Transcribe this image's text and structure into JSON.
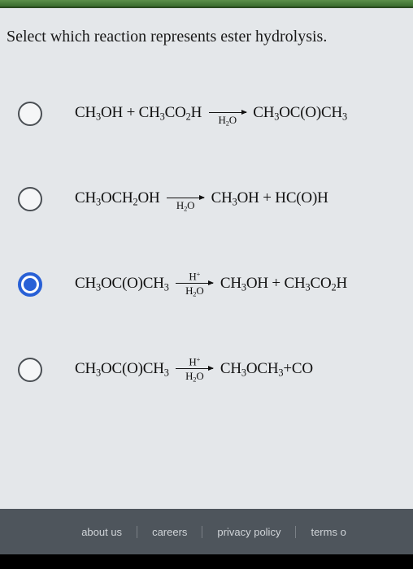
{
  "question": "Select which reaction represents ester hydrolysis.",
  "options": [
    {
      "selected": false,
      "left_html": "CH<sub>3</sub>OH + CH<sub>3</sub>CO<sub>2</sub>H",
      "top": "",
      "bottom_html": "H<sub>2</sub>O",
      "right_html": "CH<sub>3</sub>OC(O)CH<sub>3</sub>"
    },
    {
      "selected": false,
      "left_html": "CH<sub>3</sub>OCH<sub>2</sub>OH",
      "top": "",
      "bottom_html": "H<sub>2</sub>O",
      "right_html": "CH<sub>3</sub>OH + HC(O)H"
    },
    {
      "selected": true,
      "left_html": "CH<sub>3</sub>OC(O)CH<sub>3</sub>",
      "top": "H<sup>+</sup>",
      "bottom_html": "H<sub>2</sub>O",
      "right_html": "CH<sub>3</sub>OH + CH<sub>3</sub>CO<sub>2</sub>H"
    },
    {
      "selected": false,
      "left_html": "CH<sub>3</sub>OC(O)CH<sub>3</sub>",
      "top": "H<sup>+</sup>",
      "bottom_html": "H<sub>2</sub>O",
      "right_html": "CH<sub>3</sub>OCH<sub>3</sub>+CO"
    }
  ],
  "footer": {
    "links": [
      "about us",
      "careers",
      "privacy policy",
      "terms o"
    ]
  },
  "below_text": ""
}
